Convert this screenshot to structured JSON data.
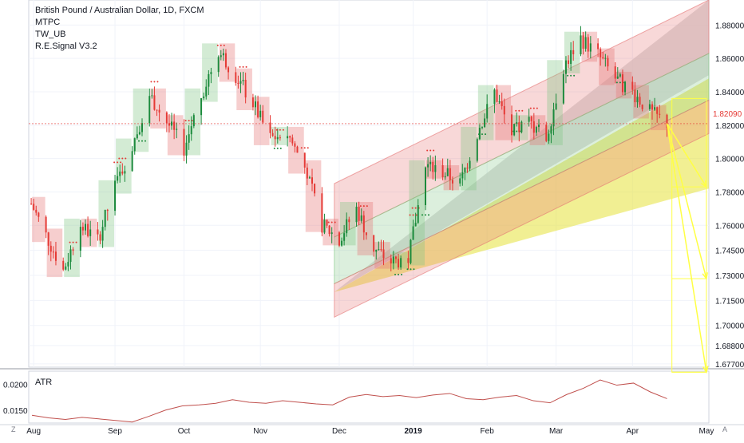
{
  "header": {
    "title": "British Pound / Australian Dollar, 1D, FXCM",
    "indicators": [
      "MTPC",
      "TW_UB",
      "R.E.Signal V3.2"
    ]
  },
  "atr_panel": {
    "label": "ATR",
    "ticks": [
      "0.0200",
      "0.0150"
    ]
  },
  "corner_left_icon": "Z",
  "corner_right_icon": "A",
  "last_price": "1.82090",
  "colors": {
    "bull": "#26a69a",
    "bear": "#ef5350",
    "channel_red": "#e57373",
    "channel_green": "#81c784",
    "fan_yellow": "#e6e23a",
    "projection": "#ffff44",
    "atr_line": "#c0504d",
    "grey_band": "#d3d3d3"
  },
  "chart_data": [
    {
      "type": "candlestick",
      "title": "British Pound / Australian Dollar, 1D, FXCM",
      "y_ticks": [
        "1.88000",
        "1.86000",
        "1.84000",
        "1.82000",
        "1.80000",
        "1.78000",
        "1.76000",
        "1.74500",
        "1.73000",
        "1.71500",
        "1.70000",
        "1.68800",
        "1.67700"
      ],
      "x_ticks": [
        "Aug",
        "Sep",
        "Oct",
        "Nov",
        "Dec",
        "2019",
        "Feb",
        "Mar",
        "Apr",
        "May"
      ],
      "ylim": [
        1.675,
        1.895
      ],
      "x_range": [
        "2018-07-30",
        "2019-05-02"
      ],
      "closes": [
        {
          "date": "2018-07-31",
          "close": 1.773
        },
        {
          "date": "2018-08-06",
          "close": 1.754
        },
        {
          "date": "2018-08-13",
          "close": 1.733
        },
        {
          "date": "2018-08-20",
          "close": 1.76
        },
        {
          "date": "2018-08-27",
          "close": 1.751
        },
        {
          "date": "2018-09-03",
          "close": 1.783
        },
        {
          "date": "2018-09-10",
          "close": 1.808
        },
        {
          "date": "2018-09-17",
          "close": 1.838
        },
        {
          "date": "2018-09-24",
          "close": 1.822
        },
        {
          "date": "2018-10-01",
          "close": 1.806
        },
        {
          "date": "2018-10-08",
          "close": 1.838
        },
        {
          "date": "2018-10-15",
          "close": 1.865
        },
        {
          "date": "2018-10-22",
          "close": 1.85
        },
        {
          "date": "2018-10-29",
          "close": 1.833
        },
        {
          "date": "2018-11-05",
          "close": 1.812
        },
        {
          "date": "2018-11-12",
          "close": 1.815
        },
        {
          "date": "2018-11-19",
          "close": 1.795
        },
        {
          "date": "2018-11-26",
          "close": 1.76
        },
        {
          "date": "2018-12-03",
          "close": 1.752
        },
        {
          "date": "2018-12-10",
          "close": 1.77
        },
        {
          "date": "2018-12-17",
          "close": 1.746
        },
        {
          "date": "2018-12-24",
          "close": 1.738
        },
        {
          "date": "2018-12-31",
          "close": 1.74
        },
        {
          "date": "2019-01-07",
          "close": 1.795
        },
        {
          "date": "2019-01-14",
          "close": 1.792
        },
        {
          "date": "2019-01-21",
          "close": 1.785
        },
        {
          "date": "2019-01-28",
          "close": 1.815
        },
        {
          "date": "2019-02-04",
          "close": 1.84
        },
        {
          "date": "2019-02-11",
          "close": 1.815
        },
        {
          "date": "2019-02-18",
          "close": 1.822
        },
        {
          "date": "2019-02-25",
          "close": 1.812
        },
        {
          "date": "2019-03-04",
          "close": 1.855
        },
        {
          "date": "2019-03-11",
          "close": 1.872
        },
        {
          "date": "2019-03-18",
          "close": 1.862
        },
        {
          "date": "2019-03-25",
          "close": 1.848
        },
        {
          "date": "2019-04-01",
          "close": 1.84
        },
        {
          "date": "2019-04-08",
          "close": 1.828
        },
        {
          "date": "2019-04-15",
          "close": 1.821
        }
      ],
      "candles_count_approx": 190,
      "projections": [
        {
          "from_date": "2019-04-15",
          "from": 1.821,
          "to_date": "2019-05-01",
          "to": 1.783
        },
        {
          "from_date": "2019-04-15",
          "from": 1.821,
          "to_date": "2019-05-01",
          "to": 1.728
        },
        {
          "from_date": "2019-04-15",
          "from": 1.821,
          "to_date": "2019-05-01",
          "to": 1.672
        }
      ]
    },
    {
      "type": "line",
      "title": "ATR",
      "ylim": [
        0.0125,
        0.0225
      ],
      "y_ticks": [
        "0.0200",
        "0.0150"
      ],
      "series": [
        {
          "name": "ATR",
          "values": [
            0.014,
            0.0135,
            0.0132,
            0.0136,
            0.0133,
            0.013,
            0.0127,
            0.0138,
            0.015,
            0.0158,
            0.016,
            0.0163,
            0.017,
            0.0165,
            0.0163,
            0.0168,
            0.0165,
            0.0162,
            0.016,
            0.0175,
            0.018,
            0.0176,
            0.0178,
            0.0174,
            0.0179,
            0.0182,
            0.0172,
            0.017,
            0.0175,
            0.0178,
            0.0168,
            0.0164,
            0.018,
            0.0192,
            0.0208,
            0.0198,
            0.0202,
            0.0185,
            0.0172
          ]
        }
      ]
    }
  ]
}
